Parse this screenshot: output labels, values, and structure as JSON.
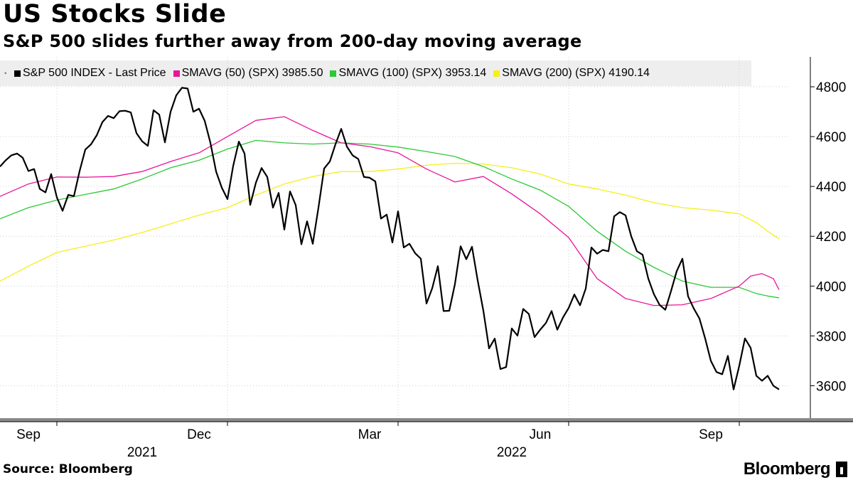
{
  "title": "US Stocks Slide",
  "subtitle": "S&P 500 slides further away from 200-day moving average",
  "legend": {
    "items": [
      {
        "label": "S&P 500 INDEX - Last Price",
        "color": "#000000"
      },
      {
        "label": "SMAVG (50) (SPX) 3985.50",
        "color": "#e8159a"
      },
      {
        "label": "SMAVG (100) (SPX) 3953.14",
        "color": "#2ec838"
      },
      {
        "label": "SMAVG (200) (SPX) 4190.14",
        "color": "#f4f01a"
      }
    ]
  },
  "footer": {
    "source": "Source: Bloomberg",
    "brand": "Bloomberg"
  },
  "chart_data": {
    "type": "line",
    "title": "US Stocks Slide",
    "subtitle": "S&P 500 slides further away from 200-day moving average",
    "xlabel": "",
    "ylabel": "",
    "ylim": [
      3470,
      4920
    ],
    "y_ticks": [
      3600,
      3800,
      4000,
      4200,
      4400,
      4600,
      4800
    ],
    "x_ticks": [
      {
        "label": "Sep",
        "month_index": 1
      },
      {
        "label": "Dec",
        "month_index": 4
      },
      {
        "label": "Mar",
        "month_index": 7
      },
      {
        "label": "Jun",
        "month_index": 10
      },
      {
        "label": "Sep",
        "month_index": 13
      }
    ],
    "x_years": [
      {
        "label": "2021",
        "month_index": 2.5
      },
      {
        "label": "2022",
        "month_index": 9.0
      }
    ],
    "x_range_months": [
      0.0,
      13.9
    ],
    "x_note": "month_index 0 = Aug 1 2021",
    "legend_position": "top-left",
    "series": [
      {
        "name": "S&P 500 INDEX - Last Price",
        "color": "#000000",
        "x": [
          0,
          0.1,
          0.2,
          0.3,
          0.4,
          0.5,
          0.6,
          0.7,
          0.8,
          0.9,
          1.0,
          1.1,
          1.2,
          1.3,
          1.4,
          1.5,
          1.6,
          1.7,
          1.8,
          1.9,
          2.0,
          2.1,
          2.2,
          2.3,
          2.4,
          2.5,
          2.6,
          2.7,
          2.8,
          2.9,
          3.0,
          3.1,
          3.2,
          3.3,
          3.4,
          3.5,
          3.6,
          3.7,
          3.8,
          3.9,
          4.0,
          4.1,
          4.2,
          4.3,
          4.4,
          4.5,
          4.6,
          4.7,
          4.8,
          4.9,
          5.0,
          5.1,
          5.2,
          5.3,
          5.4,
          5.5,
          5.6,
          5.7,
          5.8,
          5.9,
          6.0,
          6.1,
          6.2,
          6.3,
          6.4,
          6.5,
          6.6,
          6.7,
          6.8,
          6.9,
          7.0,
          7.1,
          7.2,
          7.3,
          7.4,
          7.5,
          7.6,
          7.7,
          7.8,
          7.9,
          8.0,
          8.1,
          8.2,
          8.3,
          8.4,
          8.5,
          8.6,
          8.7,
          8.8,
          8.9,
          9.0,
          9.1,
          9.2,
          9.3,
          9.4,
          9.5,
          9.6,
          9.7,
          9.8,
          9.9,
          10.0,
          10.1,
          10.2,
          10.3,
          10.4,
          10.5,
          10.6,
          10.7,
          10.8,
          10.9,
          11.0,
          11.1,
          11.2,
          11.3,
          11.4,
          11.5,
          11.6,
          11.7,
          11.8,
          11.9,
          12.0,
          12.1,
          12.2,
          12.3,
          12.4,
          12.5,
          12.6,
          12.7,
          12.8,
          12.9,
          13.0,
          13.1,
          13.2,
          13.3,
          13.4,
          13.5,
          13.6,
          13.7
        ],
        "values": [
          4480,
          4505,
          4525,
          4532,
          4515,
          4462,
          4470,
          4390,
          4376,
          4450,
          4356,
          4302,
          4366,
          4361,
          4462,
          4548,
          4569,
          4605,
          4658,
          4683,
          4674,
          4702,
          4704,
          4697,
          4614,
          4581,
          4563,
          4706,
          4688,
          4577,
          4700,
          4766,
          4796,
          4793,
          4700,
          4712,
          4663,
          4575,
          4460,
          4395,
          4349,
          4482,
          4580,
          4532,
          4326,
          4415,
          4474,
          4438,
          4315,
          4374,
          4227,
          4380,
          4325,
          4168,
          4260,
          4170,
          4315,
          4472,
          4500,
          4570,
          4631,
          4560,
          4525,
          4510,
          4438,
          4435,
          4420,
          4271,
          4287,
          4175,
          4300,
          4155,
          4170,
          4132,
          4110,
          3930,
          3991,
          4080,
          3900,
          3901,
          4008,
          4160,
          4108,
          4158,
          4023,
          3901,
          3750,
          3789,
          3667,
          3675,
          3830,
          3801,
          3908,
          3888,
          3795,
          3825,
          3852,
          3900,
          3825,
          3874,
          3912,
          3966,
          3923,
          3990,
          4155,
          4130,
          4145,
          4140,
          4280,
          4297,
          4284,
          4200,
          4140,
          4126,
          4030,
          3967,
          3924,
          3905,
          3980,
          4060,
          4110,
          3959,
          3910,
          3870,
          3790,
          3700,
          3655,
          3646,
          3720,
          3585,
          3680,
          3790,
          3752,
          3640,
          3620,
          3640,
          3600,
          3585
        ]
      },
      {
        "name": "SMAVG (50) (SPX)",
        "color": "#e8159a",
        "x": [
          0,
          0.5,
          1.0,
          1.5,
          2.0,
          2.5,
          3.0,
          3.5,
          4.0,
          4.5,
          5.0,
          5.5,
          6.0,
          6.5,
          7.0,
          7.5,
          8.0,
          8.5,
          9.0,
          9.5,
          10.0,
          10.5,
          11.0,
          11.5,
          12.0,
          12.5,
          13.0,
          13.2,
          13.4,
          13.6,
          13.7
        ],
        "values": [
          4360,
          4410,
          4438,
          4437,
          4440,
          4460,
          4500,
          4535,
          4600,
          4665,
          4680,
          4625,
          4575,
          4560,
          4535,
          4470,
          4418,
          4440,
          4370,
          4290,
          4195,
          4030,
          3950,
          3922,
          3925,
          3950,
          4000,
          4040,
          4050,
          4030,
          3985
        ]
      },
      {
        "name": "SMAVG (100) (SPX)",
        "color": "#2ec838",
        "x": [
          0,
          0.5,
          1.0,
          1.5,
          2.0,
          2.5,
          3.0,
          3.5,
          4.0,
          4.5,
          5.0,
          5.5,
          6.0,
          6.5,
          7.0,
          7.5,
          8.0,
          8.5,
          9.0,
          9.5,
          10.0,
          10.5,
          11.0,
          11.5,
          12.0,
          12.5,
          13.0,
          13.3,
          13.5,
          13.7
        ],
        "values": [
          4270,
          4315,
          4345,
          4368,
          4390,
          4430,
          4475,
          4505,
          4550,
          4585,
          4575,
          4570,
          4575,
          4570,
          4558,
          4540,
          4520,
          4480,
          4430,
          4385,
          4320,
          4220,
          4140,
          4075,
          4020,
          3995,
          3995,
          3970,
          3960,
          3953
        ]
      },
      {
        "name": "SMAVG (200) (SPX)",
        "color": "#f4f01a",
        "x": [
          0,
          0.5,
          1.0,
          1.5,
          2.0,
          2.5,
          3.0,
          3.5,
          4.0,
          4.5,
          5.0,
          5.5,
          6.0,
          6.5,
          7.0,
          7.5,
          8.0,
          8.5,
          9.0,
          9.5,
          10.0,
          10.5,
          11.0,
          11.5,
          12.0,
          12.5,
          13.0,
          13.3,
          13.5,
          13.7
        ],
        "values": [
          4020,
          4080,
          4135,
          4160,
          4185,
          4215,
          4250,
          4285,
          4315,
          4365,
          4410,
          4440,
          4460,
          4460,
          4470,
          4485,
          4493,
          4490,
          4475,
          4450,
          4410,
          4390,
          4365,
          4335,
          4315,
          4305,
          4290,
          4255,
          4220,
          4190
        ]
      }
    ]
  }
}
